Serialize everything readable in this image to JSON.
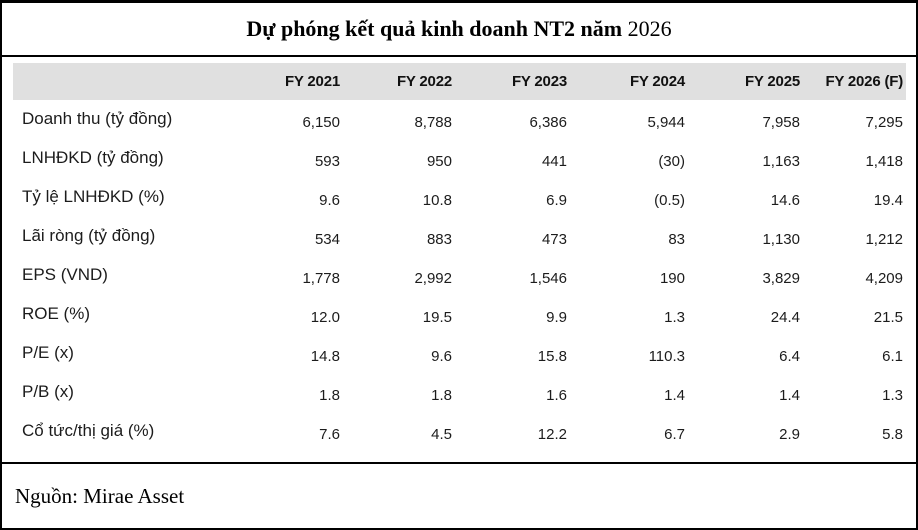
{
  "title": {
    "bold": "Dự phóng kết quả kinh doanh NT2 năm ",
    "year": "2026"
  },
  "table": {
    "columns": [
      "FY 2021",
      "FY 2022",
      "FY 2023",
      "FY 2024",
      "FY 2025",
      "FY 2026 (F)"
    ],
    "rows": [
      {
        "label": "Doanh thu (tỷ đồng)",
        "values": [
          "6,150",
          "8,788",
          "6,386",
          "5,944",
          "7,958",
          "7,295"
        ]
      },
      {
        "label": "LNHĐKD (tỷ đồng)",
        "values": [
          "593",
          "950",
          "441",
          "(30)",
          "1,163",
          "1,418"
        ]
      },
      {
        "label": "Tỷ lệ LNHĐKD (%)",
        "values": [
          "9.6",
          "10.8",
          "6.9",
          "(0.5)",
          "14.6",
          "19.4"
        ]
      },
      {
        "label": "Lãi ròng (tỷ đồng)",
        "values": [
          "534",
          "883",
          "473",
          "83",
          "1,130",
          "1,212"
        ]
      },
      {
        "label": "EPS (VND)",
        "values": [
          "1,778",
          "2,992",
          "1,546",
          "190",
          "3,829",
          "4,209"
        ]
      },
      {
        "label": "ROE (%)",
        "values": [
          "12.0",
          "19.5",
          "9.9",
          "1.3",
          "24.4",
          "21.5"
        ]
      },
      {
        "label": "P/E (x)",
        "values": [
          "14.8",
          "9.6",
          "15.8",
          "110.3",
          "6.4",
          "6.1"
        ]
      },
      {
        "label": "P/B (x)",
        "values": [
          "1.8",
          "1.8",
          "1.6",
          "1.4",
          "1.4",
          "1.3"
        ]
      },
      {
        "label": "Cổ tức/thị giá (%)",
        "values": [
          "7.6",
          "4.5",
          "12.2",
          "6.7",
          "2.9",
          "5.8"
        ]
      }
    ]
  },
  "footer": {
    "source": "Nguồn: Mirae Asset"
  },
  "colors": {
    "header_bg": "#e0e0e0",
    "border": "#000000",
    "text": "#1c1c1c"
  }
}
